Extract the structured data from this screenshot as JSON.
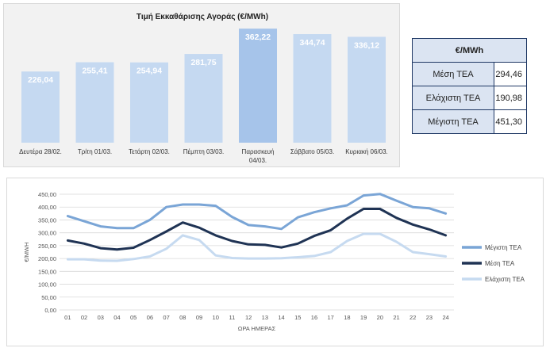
{
  "chart_data": [
    {
      "type": "bar",
      "title": "Τιμή Εκκαθάρισης Αγοράς (€/MWh)",
      "categories": [
        "Δευτέρα 28/02.",
        "Τρίτη 01/03.",
        "Τετάρτη 02/03.",
        "Πέμπτη 03/03.",
        "Παρασκευή 04/03.",
        "Σάββατο 05/03.",
        "Κυριακή 06/03."
      ],
      "values": [
        226.04,
        255.41,
        254.94,
        281.75,
        362.22,
        344.74,
        336.12
      ],
      "value_labels": [
        "226,04",
        "255,41",
        "254,94",
        "281,75",
        "362,22",
        "344,74",
        "336,12"
      ],
      "ylim": [
        0,
        370
      ],
      "colors": {
        "bar": "#c5d9f1",
        "bar_highlight": "#a6c4ea",
        "label": "#ffffff"
      }
    },
    {
      "type": "line",
      "x": [
        "01",
        "02",
        "03",
        "04",
        "05",
        "06",
        "07",
        "08",
        "09",
        "10",
        "11",
        "12",
        "13",
        "14",
        "15",
        "16",
        "17",
        "18",
        "19",
        "20",
        "21",
        "22",
        "23",
        "24"
      ],
      "xlabel": "ΩΡΑ ΗΜΕΡΑΣ",
      "ylabel": "€/MWH",
      "ylim": [
        0,
        450
      ],
      "yticks": [
        "0,00",
        "50,00",
        "100,00",
        "150,00",
        "200,00",
        "250,00",
        "300,00",
        "350,00",
        "400,00",
        "450,00"
      ],
      "grid": true,
      "legend_position": "right",
      "series": [
        {
          "name": "Μέγιστη ΤΕΑ",
          "color": "#7aa5d6",
          "values": [
            365,
            345,
            325,
            318,
            318,
            350,
            400,
            410,
            410,
            405,
            362,
            330,
            325,
            315,
            360,
            380,
            395,
            407,
            445,
            451,
            425,
            400,
            395,
            375
          ]
        },
        {
          "name": "Μέση ΤΕΑ",
          "color": "#1f3354",
          "values": [
            270,
            258,
            240,
            235,
            242,
            272,
            305,
            340,
            320,
            290,
            268,
            255,
            253,
            243,
            258,
            288,
            310,
            355,
            393,
            393,
            358,
            332,
            313,
            290
          ]
        },
        {
          "name": "Ελάχιστη ΤΕΑ",
          "color": "#c6daf0",
          "values": [
            197,
            197,
            192,
            191,
            198,
            208,
            238,
            290,
            272,
            212,
            202,
            200,
            200,
            201,
            205,
            210,
            225,
            268,
            296,
            296,
            265,
            225,
            217,
            208
          ]
        }
      ]
    }
  ],
  "stats_table": {
    "header": "€/MWh",
    "rows": [
      {
        "label": "Μέση ΤΕΑ",
        "value": "294,46"
      },
      {
        "label": "Ελάχιστη ΤΕΑ",
        "value": "190,98"
      },
      {
        "label": "Μέγιστη ΤΕΑ",
        "value": "451,30"
      }
    ]
  }
}
